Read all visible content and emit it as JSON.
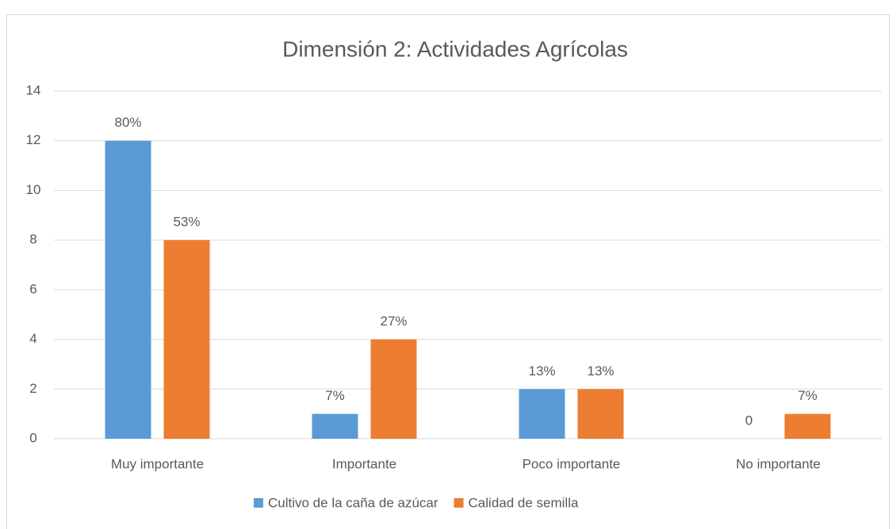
{
  "chart_data": {
    "type": "bar",
    "title": "Dimensión 2: Actividades Agrícolas",
    "categories": [
      "Muy importante",
      "Importante",
      "Poco importante",
      "No importante"
    ],
    "series": [
      {
        "name": "Cultivo de la caña de azúcar",
        "color": "#5b9bd5",
        "values": [
          12,
          1,
          2,
          0
        ],
        "value_labels": [
          "80%",
          "7%",
          "13%",
          "0"
        ]
      },
      {
        "name": "Calidad de semilla",
        "color": "#ed7d31",
        "values": [
          8,
          4,
          2,
          1
        ],
        "value_labels": [
          "53%",
          "27%",
          "13%",
          "7%"
        ]
      }
    ],
    "ylim": [
      0,
      14
    ],
    "yticks": [
      0,
      2,
      4,
      6,
      8,
      10,
      12,
      14
    ],
    "grid": true,
    "legend": "bottom"
  }
}
